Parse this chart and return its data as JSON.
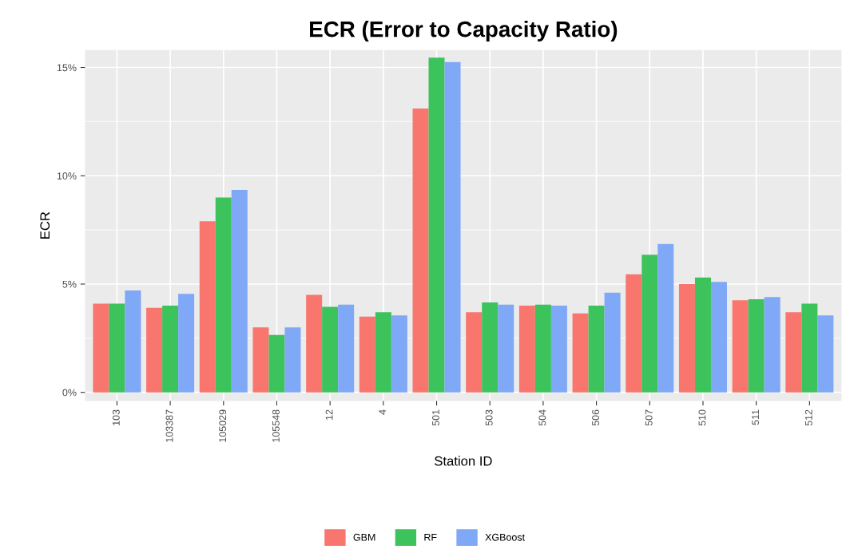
{
  "chart_data": {
    "type": "bar",
    "title": "ECR (Error to Capacity Ratio)",
    "xlabel": "Station ID",
    "ylabel": "ECR",
    "categories": [
      "103",
      "103387",
      "105029",
      "105548",
      "12",
      "4",
      "501",
      "503",
      "504",
      "506",
      "507",
      "510",
      "511",
      "512"
    ],
    "series": [
      {
        "name": "GBM",
        "color": "#f8766d",
        "values": [
          4.1,
          3.9,
          7.9,
          3.0,
          4.5,
          3.5,
          13.1,
          3.7,
          4.0,
          3.65,
          5.45,
          5.0,
          4.25,
          3.7
        ]
      },
      {
        "name": "RF",
        "color": "#3cc35c",
        "values": [
          4.1,
          4.0,
          9.0,
          2.65,
          3.95,
          3.7,
          15.45,
          4.15,
          4.05,
          4.0,
          6.35,
          5.3,
          4.3,
          4.1
        ]
      },
      {
        "name": "XGBoost",
        "color": "#7fa8f6",
        "values": [
          4.7,
          4.55,
          9.35,
          3.0,
          4.05,
          3.55,
          15.25,
          4.05,
          4.0,
          4.6,
          6.85,
          5.1,
          4.4,
          3.55
        ]
      }
    ],
    "ylim": [
      -0.4,
      15.8
    ],
    "yticks": [
      {
        "value": 0,
        "label": "0%"
      },
      {
        "value": 5,
        "label": "5%"
      },
      {
        "value": 10,
        "label": "10%"
      },
      {
        "value": 15,
        "label": "15%"
      }
    ],
    "grid": true,
    "legend": "bottom"
  }
}
